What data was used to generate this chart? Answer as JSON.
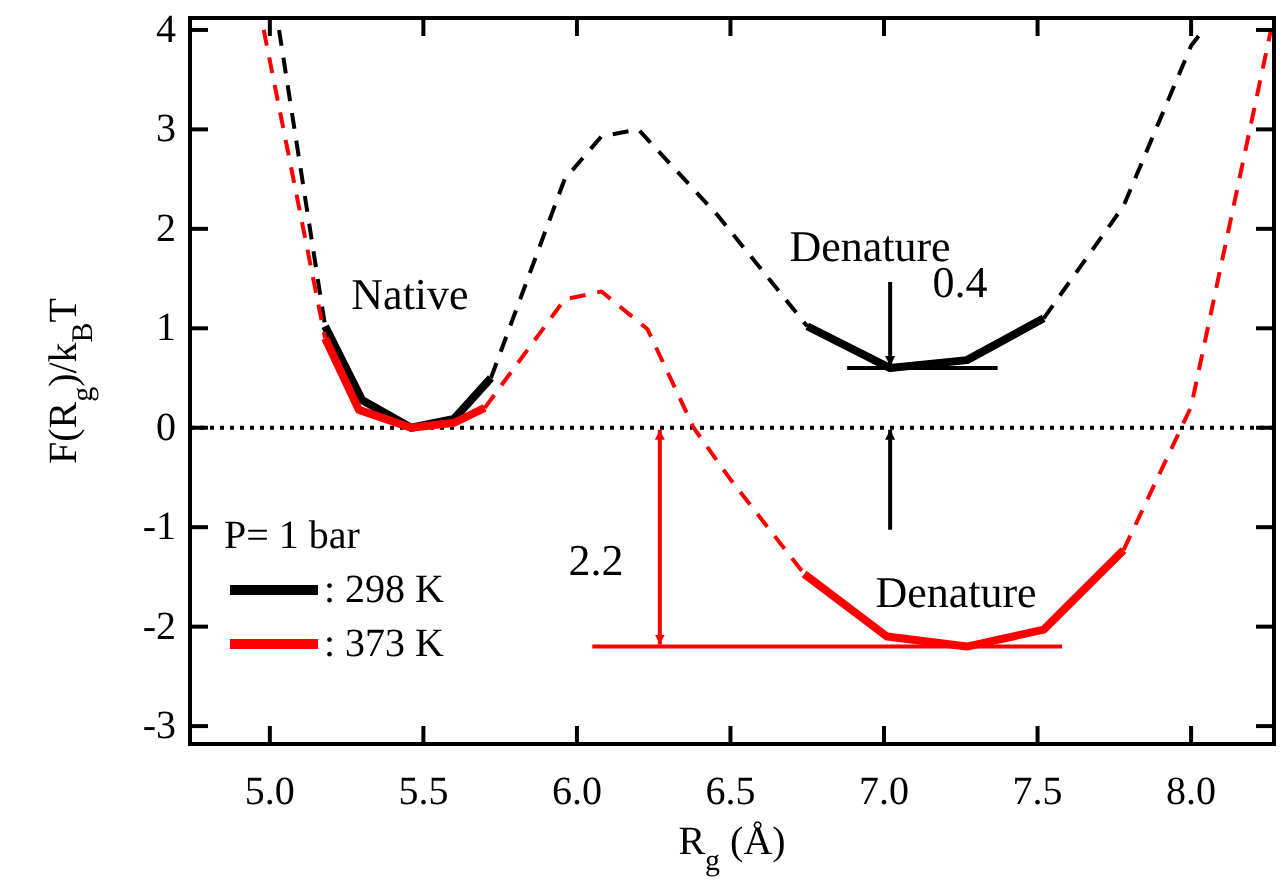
{
  "chart_data": {
    "type": "line",
    "xlabel": "R$_{g}$  (Å)",
    "ylabel": "F(R$_{g}$)/k$_{B}$T",
    "legend_title": "P= 1 bar",
    "legend": "bottom left",
    "xlim": [
      4.74,
      8.27
    ],
    "ylim": [
      -3.18,
      4.12
    ],
    "xticks": [
      {
        "value": 5,
        "label": "5.0"
      },
      {
        "value": 5.5,
        "label": "5.5"
      },
      {
        "value": 6,
        "label": "6.0"
      },
      {
        "value": 6.5,
        "label": "6.5"
      },
      {
        "value": 7,
        "label": "7.0"
      },
      {
        "value": 7.5,
        "label": "7.5"
      },
      {
        "value": 8,
        "label": "8.0"
      }
    ],
    "yticks": [
      -3,
      -2,
      -1,
      0,
      1,
      2,
      3,
      4
    ],
    "marker": "none",
    "series": [
      {
        "name": ": 298 K",
        "color": "#000000",
        "line_style": "solid",
        "x": [
          5.18,
          5.3,
          5.46,
          5.6,
          5.72,
          6.2,
          6.75,
          7.02,
          7.27,
          7.52
        ],
        "values": [
          1.02,
          0.28,
          0,
          0.09,
          0.5,
          null,
          1.02,
          0.6,
          0.68,
          1.1
        ]
      },
      {
        "name": ": 373 K",
        "color": "#ff0000",
        "line_style": "solid",
        "x": [
          5.18,
          5.29,
          5.46,
          5.6,
          5.7,
          6.2,
          6.74,
          7.01,
          7.27,
          7.52,
          7.78
        ],
        "values": [
          0.9,
          0.18,
          0,
          0.05,
          0.2,
          null,
          -1.47,
          -2.1,
          -2.2,
          -2.03,
          -1.23
        ]
      },
      {
        "color": "#000000",
        "line_style": "dashed",
        "x": [
          5.03,
          5.18,
          5.45,
          5.72,
          5.96,
          6.08,
          6.2,
          6.46,
          6.75,
          7.1,
          7.52,
          7.78,
          8,
          8.04
        ],
        "values": [
          4,
          1.02,
          null,
          0.5,
          2.5,
          2.93,
          3,
          2.13,
          1.02,
          null,
          1.1,
          2.23,
          3.84,
          4
        ]
      },
      {
        "color": "#ff0000",
        "line_style": "dashed",
        "x": [
          4.98,
          5.18,
          5.45,
          5.7,
          5.96,
          6.08,
          6.23,
          6.38,
          6.5,
          6.74,
          7.2,
          7.78,
          8,
          8.26
        ],
        "values": [
          4,
          0.9,
          null,
          0.2,
          1.29,
          1.37,
          0.99,
          0,
          -0.52,
          -1.47,
          null,
          -1.23,
          0.21,
          4
        ]
      }
    ],
    "ref_lines": [
      {
        "axis": "y",
        "value": 0,
        "color": "#000000",
        "line_style": "dotted"
      }
    ],
    "annotations": [
      "Native",
      {
        "text": "Denature",
        "x": 7.02,
        "y": 0.6
      },
      "0.4",
      {
        "text": "Denature",
        "x": 7.02,
        "y": 0
      },
      "2.2"
    ]
  }
}
